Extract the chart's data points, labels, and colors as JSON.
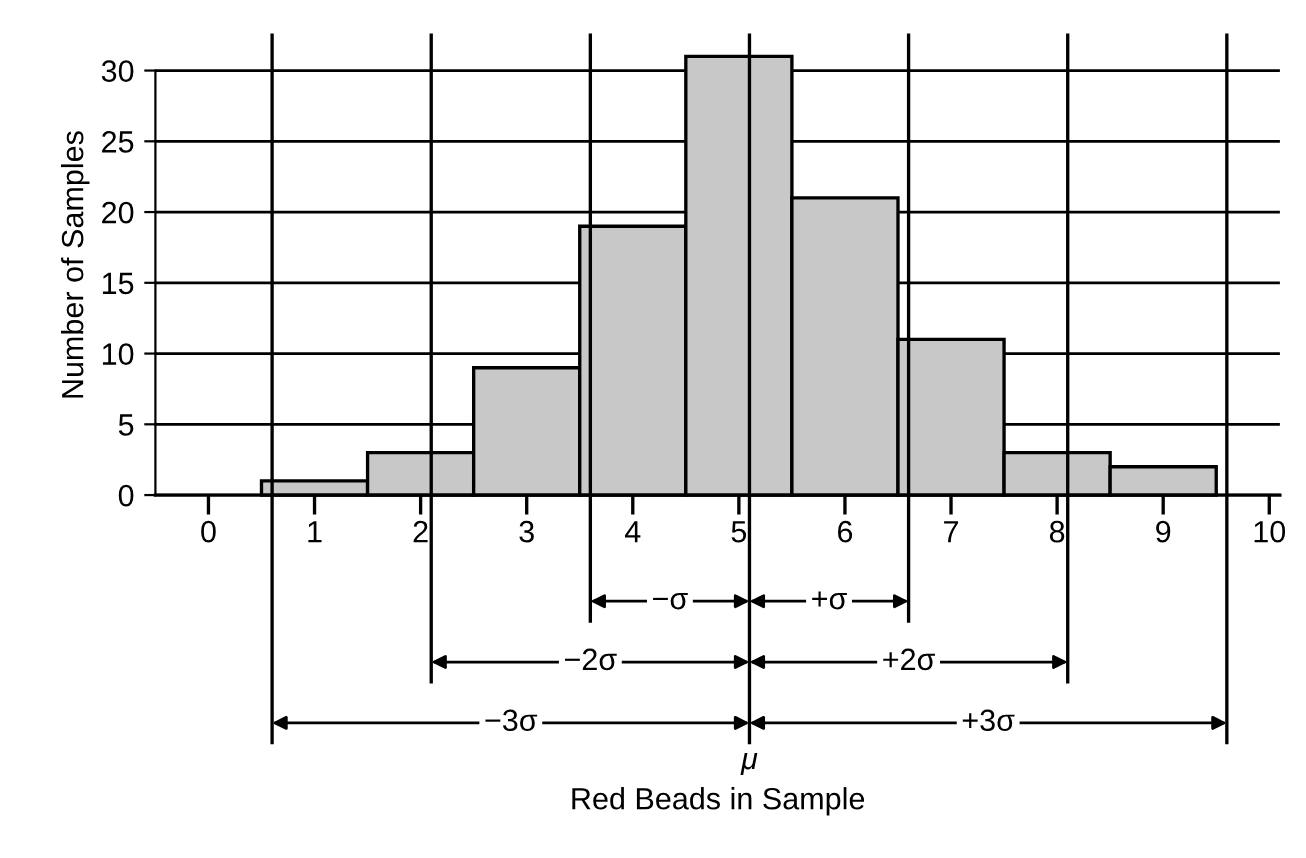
{
  "chart_data": {
    "type": "histogram",
    "ylabel": "Number of Samples",
    "bins": [
      0.5,
      1.5,
      2.5,
      3.5,
      4.5,
      5.5,
      6.5,
      7.5,
      8.5,
      9.5
    ],
    "values": [
      1,
      3,
      9,
      19,
      31,
      21,
      11,
      3,
      2
    ],
    "color": "#c8c8c8",
    "xlim": [
      -0.5,
      10.1
    ],
    "xticks": [
      0,
      1,
      2,
      3,
      4,
      5,
      6,
      7,
      8,
      9,
      10
    ],
    "ylim": [
      0,
      32.5
    ],
    "yticks": [
      0,
      5,
      10,
      15,
      20,
      25,
      30
    ],
    "grid": "y",
    "ref_lines": [
      {
        "axis": "x",
        "value": 0.6,
        "label": null
      },
      {
        "axis": "x",
        "value": 2.1,
        "label": null
      },
      {
        "axis": "x",
        "value": 3.6,
        "label": null
      },
      {
        "axis": "x",
        "value": 5.1,
        "label": "μ"
      },
      {
        "axis": "x",
        "value": 6.6,
        "label": null
      },
      {
        "axis": "x",
        "value": 8.1,
        "label": null
      },
      {
        "axis": "x",
        "value": 9.6,
        "label": null
      }
    ],
    "annotations": [
      "−σ",
      "+σ",
      "−2σ",
      "+2σ",
      "−3σ",
      "+3σ",
      "Red Beads in Sample"
    ]
  }
}
